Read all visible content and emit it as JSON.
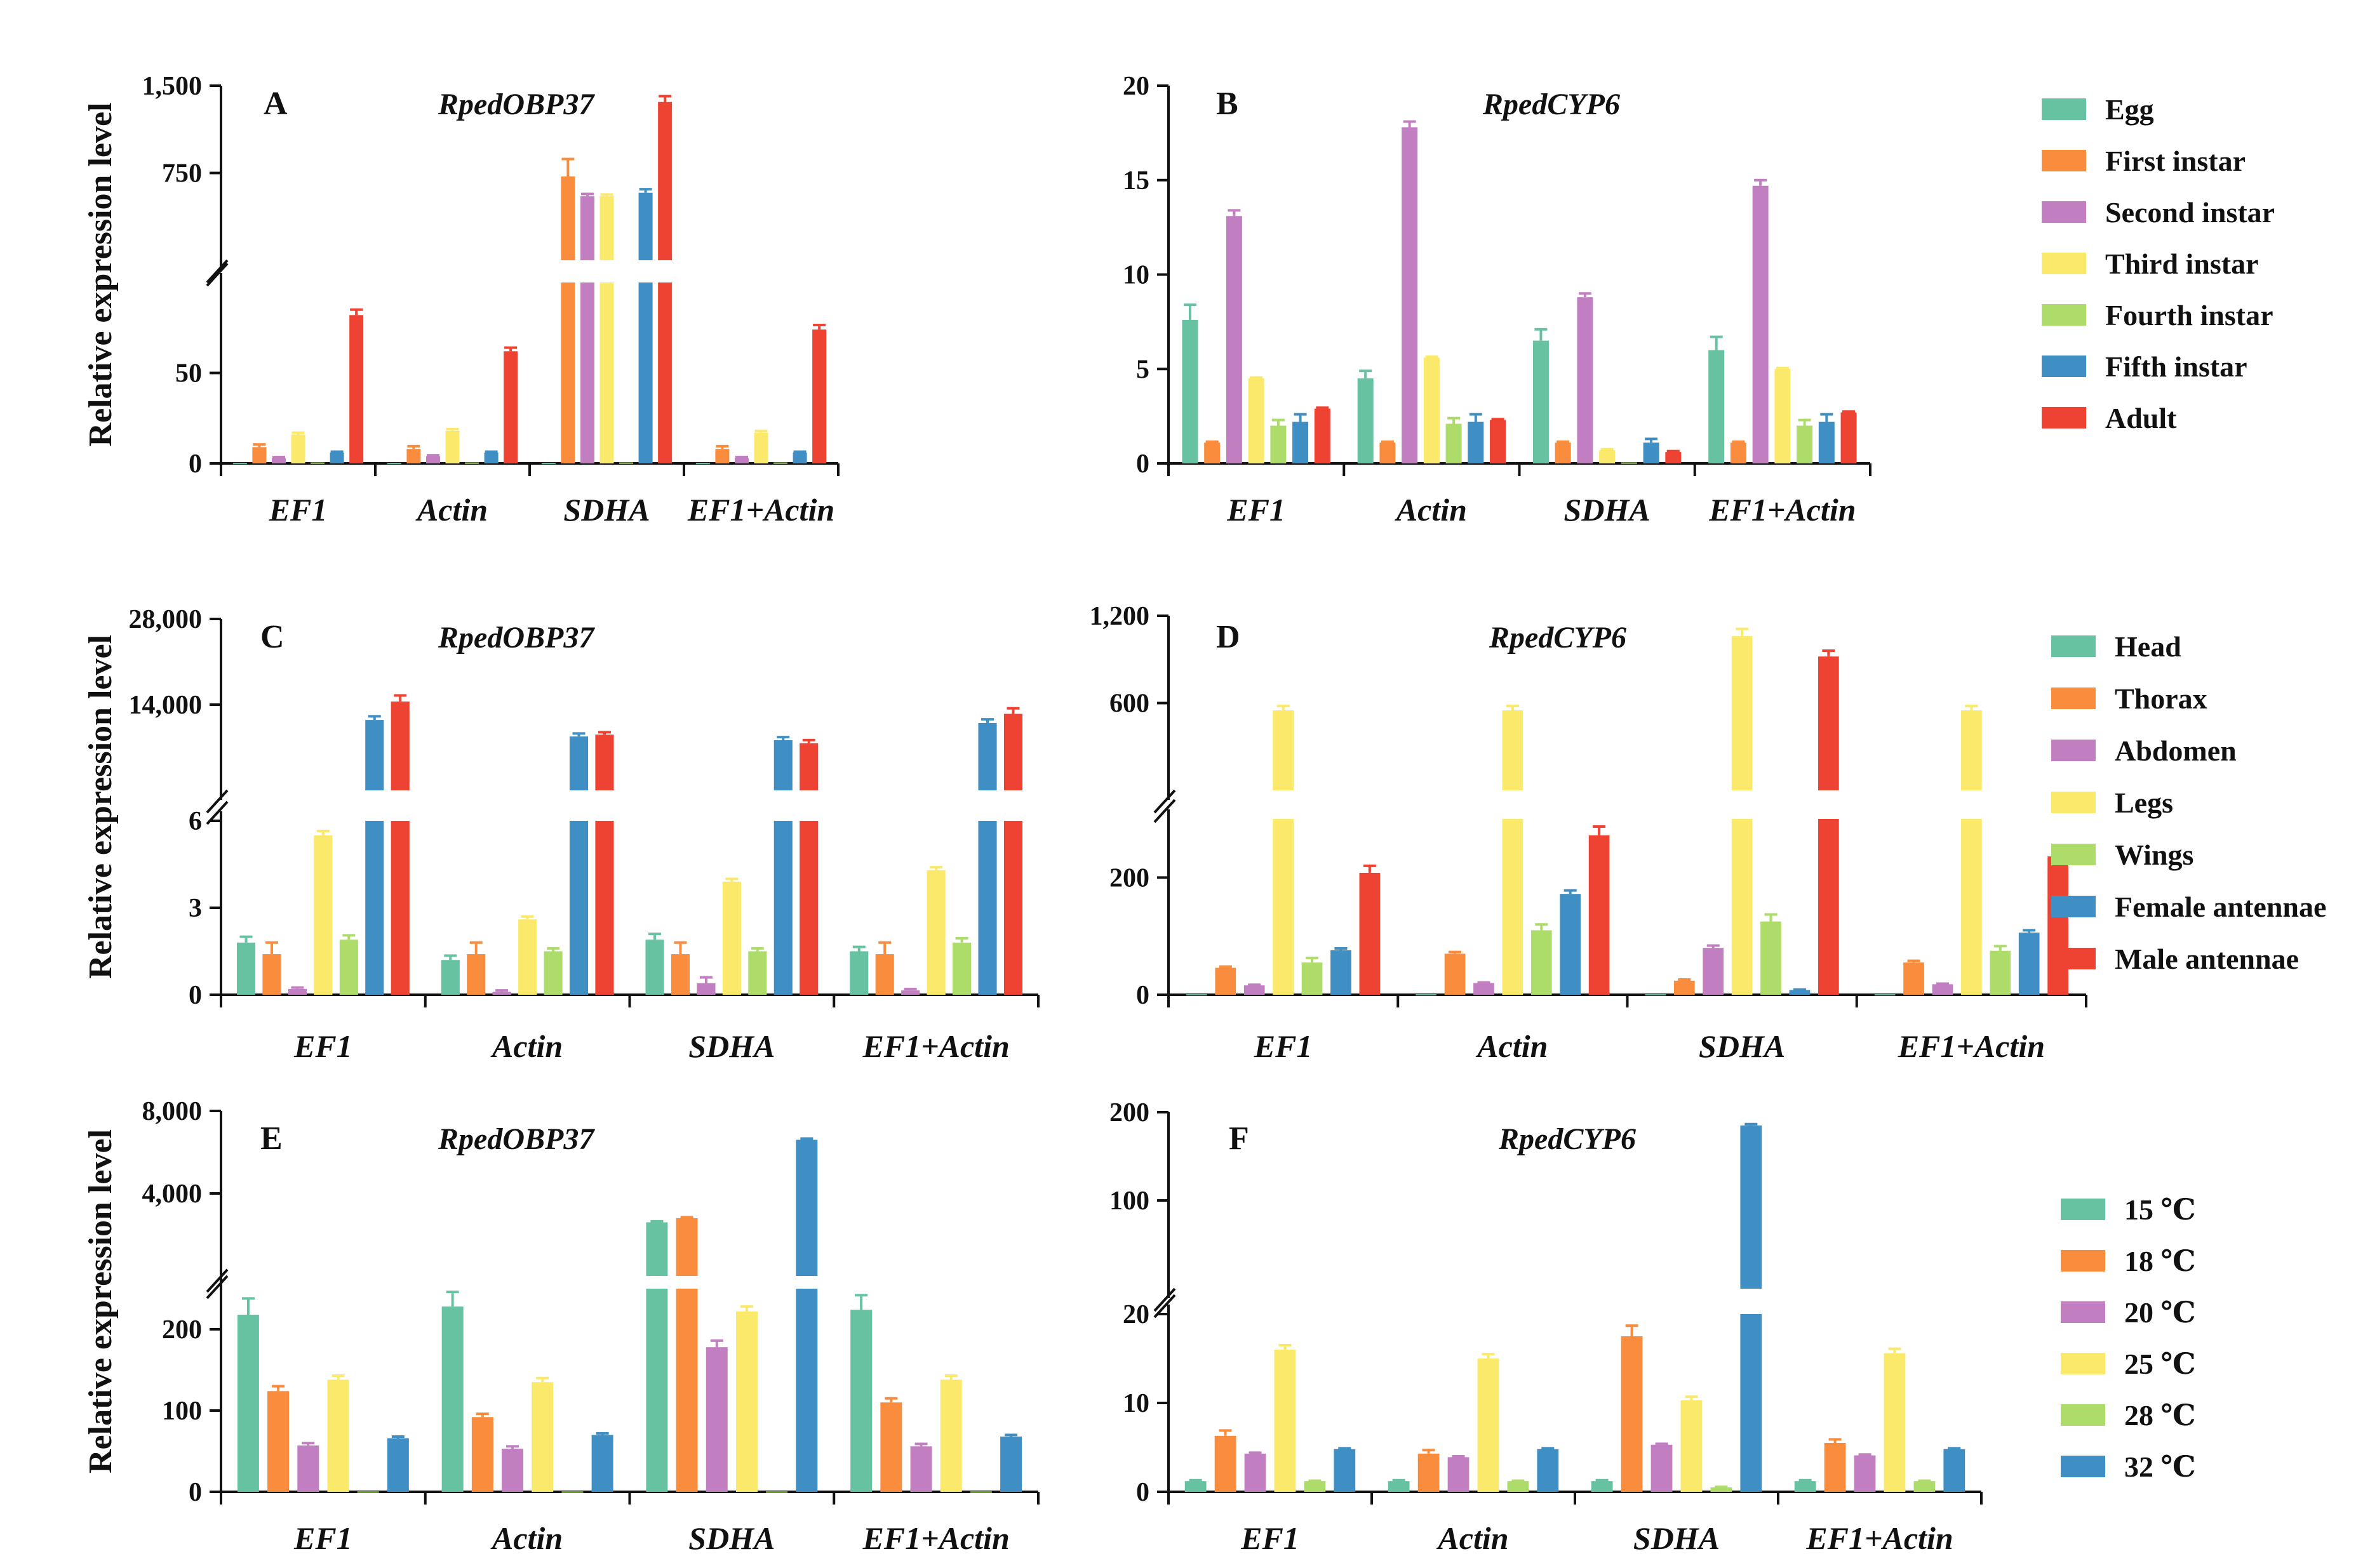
{
  "figure": {
    "ylabel": "Relative expression level"
  },
  "legends": [
    {
      "name": "stages",
      "entries": [
        {
          "label": "Egg",
          "color": "#66c2a0"
        },
        {
          "label": "First instar",
          "color": "#f98c3d"
        },
        {
          "label": "Second instar",
          "color": "#c17fc2"
        },
        {
          "label": "Third instar",
          "color": "#fbe96b"
        },
        {
          "label": "Fourth instar",
          "color": "#aedc6a"
        },
        {
          "label": "Fifth instar",
          "color": "#3f8fc4"
        },
        {
          "label": "Adult",
          "color": "#ee4232"
        }
      ]
    },
    {
      "name": "tissues",
      "entries": [
        {
          "label": "Head",
          "color": "#66c2a0"
        },
        {
          "label": "Thorax",
          "color": "#f98c3d"
        },
        {
          "label": "Abdomen",
          "color": "#c17fc2"
        },
        {
          "label": "Legs",
          "color": "#fbe96b"
        },
        {
          "label": "Wings",
          "color": "#aedc6a"
        },
        {
          "label": "Female antennae",
          "color": "#3f8fc4"
        },
        {
          "label": "Male antennae",
          "color": "#ee4232"
        }
      ]
    },
    {
      "name": "temperatures",
      "entries": [
        {
          "label": "15 ℃",
          "color": "#66c2a0"
        },
        {
          "label": "18 ℃",
          "color": "#f98c3d"
        },
        {
          "label": "20 ℃",
          "color": "#c17fc2"
        },
        {
          "label": "25 ℃",
          "color": "#fbe96b"
        },
        {
          "label": "28 ℃",
          "color": "#aedc6a"
        },
        {
          "label": "32 ℃",
          "color": "#3f8fc4"
        }
      ]
    }
  ],
  "chart_data": [
    {
      "panel": "A",
      "gene": "RpedOBP37",
      "type": "bar",
      "ylabel": "Relative expression level",
      "categories": [
        "EF1",
        "Actin",
        "SDHA",
        "EF1+Actin"
      ],
      "legend_group": 0,
      "y_axis": {
        "broken": true,
        "lower_range": [
          0,
          100
        ],
        "lower_ticks": [
          "0",
          "50"
        ],
        "lower_tick_values": [
          0,
          50
        ],
        "upper_range": [
          0,
          1500
        ],
        "upper_ticks": [
          "750",
          "1,500"
        ],
        "upper_tick_values": [
          750,
          1500
        ]
      },
      "series": [
        {
          "name": "Egg",
          "values": [
            0.3,
            0.3,
            0.3,
            0.3
          ],
          "errors": [
            0,
            0,
            0,
            0
          ]
        },
        {
          "name": "First instar",
          "values": [
            9,
            8,
            720,
            8
          ],
          "errors": [
            1.5,
            1.5,
            150,
            1.5
          ]
        },
        {
          "name": "Second instar",
          "values": [
            3,
            4,
            550,
            3
          ],
          "errors": [
            0.5,
            0.5,
            20,
            0.5
          ]
        },
        {
          "name": "Third instar",
          "values": [
            16,
            18,
            550,
            17
          ],
          "errors": [
            1,
            1,
            15,
            1
          ]
        },
        {
          "name": "Fourth instar",
          "values": [
            0.5,
            0.5,
            0.5,
            0.5
          ],
          "errors": [
            0,
            0,
            0,
            0
          ]
        },
        {
          "name": "Fifth instar",
          "values": [
            6,
            6,
            580,
            6
          ],
          "errors": [
            0.5,
            0.5,
            30,
            0.5
          ]
        },
        {
          "name": "Adult",
          "values": [
            82,
            62,
            1360,
            74
          ],
          "errors": [
            3,
            2,
            50,
            2.5
          ]
        }
      ]
    },
    {
      "panel": "B",
      "gene": "RpedCYP6",
      "type": "bar",
      "ylabel": "",
      "categories": [
        "EF1",
        "Actin",
        "SDHA",
        "EF1+Actin"
      ],
      "legend_group": 0,
      "y_axis": {
        "broken": false,
        "range": [
          0,
          20
        ],
        "ticks": [
          "0",
          "5",
          "10",
          "15",
          "20"
        ],
        "tick_values": [
          0,
          5,
          10,
          15,
          20
        ]
      },
      "series": [
        {
          "name": "Egg",
          "values": [
            7.6,
            4.5,
            6.5,
            6.0
          ],
          "errors": [
            0.8,
            0.4,
            0.6,
            0.7
          ]
        },
        {
          "name": "First instar",
          "values": [
            1.1,
            1.1,
            1.1,
            1.1
          ],
          "errors": [
            0.05,
            0.05,
            0.05,
            0.05
          ]
        },
        {
          "name": "Second instar",
          "values": [
            13.1,
            17.8,
            8.8,
            14.7
          ],
          "errors": [
            0.3,
            0.3,
            0.2,
            0.3
          ]
        },
        {
          "name": "Third instar",
          "values": [
            4.5,
            5.6,
            0.7,
            5.0
          ],
          "errors": [
            0.05,
            0.05,
            0.05,
            0.05
          ]
        },
        {
          "name": "Fourth instar",
          "values": [
            2.0,
            2.1,
            0.05,
            2.0
          ],
          "errors": [
            0.3,
            0.3,
            0,
            0.3
          ]
        },
        {
          "name": "Fifth instar",
          "values": [
            2.2,
            2.2,
            1.1,
            2.2
          ],
          "errors": [
            0.4,
            0.4,
            0.2,
            0.4
          ]
        },
        {
          "name": "Adult",
          "values": [
            2.9,
            2.3,
            0.6,
            2.7
          ],
          "errors": [
            0.05,
            0.05,
            0.05,
            0.05
          ]
        }
      ]
    },
    {
      "panel": "C",
      "gene": "RpedOBP37",
      "type": "bar",
      "ylabel": "Relative expression level",
      "categories": [
        "EF1",
        "Actin",
        "SDHA",
        "EF1+Actin"
      ],
      "legend_group": 1,
      "y_axis": {
        "broken": true,
        "lower_range": [
          0,
          6
        ],
        "lower_ticks": [
          "0",
          "3",
          "6"
        ],
        "lower_tick_values": [
          0,
          3,
          6
        ],
        "upper_range": [
          0,
          28000
        ],
        "upper_ticks": [
          "14,000",
          "28,000"
        ],
        "upper_tick_values": [
          14000,
          28000
        ]
      },
      "series": [
        {
          "name": "Head",
          "values": [
            1.8,
            1.2,
            1.9,
            1.5
          ],
          "errors": [
            0.2,
            0.15,
            0.2,
            0.15
          ]
        },
        {
          "name": "Thorax",
          "values": [
            1.4,
            1.4,
            1.4,
            1.4
          ],
          "errors": [
            0.4,
            0.4,
            0.4,
            0.4
          ]
        },
        {
          "name": "Abdomen",
          "values": [
            0.2,
            0.1,
            0.4,
            0.15
          ],
          "errors": [
            0.05,
            0.05,
            0.2,
            0.05
          ]
        },
        {
          "name": "Legs",
          "values": [
            5.5,
            2.6,
            3.9,
            4.3
          ],
          "errors": [
            0.15,
            0.1,
            0.1,
            0.1
          ]
        },
        {
          "name": "Wings",
          "values": [
            1.9,
            1.5,
            1.5,
            1.8
          ],
          "errors": [
            0.15,
            0.1,
            0.1,
            0.15
          ]
        },
        {
          "name": "Female antennae",
          "values": [
            11500,
            8800,
            8200,
            11000
          ],
          "errors": [
            600,
            500,
            500,
            600
          ]
        },
        {
          "name": "Male antennae",
          "values": [
            14500,
            9100,
            7700,
            12500
          ],
          "errors": [
            1000,
            400,
            500,
            900
          ]
        }
      ]
    },
    {
      "panel": "D",
      "gene": "RpedCYP6",
      "type": "bar",
      "ylabel": "",
      "categories": [
        "EF1",
        "Actin",
        "SDHA",
        "EF1+Actin"
      ],
      "legend_group": 1,
      "y_axis": {
        "broken": true,
        "lower_range": [
          0,
          300
        ],
        "lower_ticks": [
          "0",
          "200"
        ],
        "lower_tick_values": [
          0,
          200
        ],
        "upper_range": [
          0,
          1200
        ],
        "upper_ticks": [
          "600",
          "1,200"
        ],
        "upper_tick_values": [
          600,
          1200
        ]
      },
      "series": [
        {
          "name": "Head",
          "values": [
            1,
            1,
            1,
            1
          ],
          "errors": [
            0,
            0,
            0,
            0
          ]
        },
        {
          "name": "Thorax",
          "values": [
            46,
            70,
            24,
            55
          ],
          "errors": [
            2,
            3,
            2,
            3
          ]
        },
        {
          "name": "Abdomen",
          "values": [
            16,
            20,
            80,
            18
          ],
          "errors": [
            1,
            1,
            4,
            1
          ]
        },
        {
          "name": "Legs",
          "values": [
            550,
            550,
            1060,
            550
          ],
          "errors": [
            30,
            30,
            50,
            30
          ]
        },
        {
          "name": "Wings",
          "values": [
            55,
            110,
            125,
            75
          ],
          "errors": [
            8,
            10,
            12,
            8
          ]
        },
        {
          "name": "Female antennae",
          "values": [
            76,
            172,
            8,
            106
          ],
          "errors": [
            3,
            6,
            1,
            4
          ]
        },
        {
          "name": "Male antennae",
          "values": [
            208,
            272,
            920,
            236
          ],
          "errors": [
            12,
            15,
            40,
            14
          ]
        }
      ]
    },
    {
      "panel": "E",
      "gene": "RpedOBP37",
      "type": "bar",
      "ylabel": "Relative expression level",
      "categories": [
        "EF1",
        "Actin",
        "SDHA",
        "EF1+Actin"
      ],
      "legend_group": 2,
      "y_axis": {
        "broken": true,
        "lower_range": [
          0,
          250
        ],
        "lower_ticks": [
          "0",
          "100",
          "200"
        ],
        "lower_tick_values": [
          0,
          100,
          200
        ],
        "upper_range": [
          0,
          8000
        ],
        "upper_ticks": [
          "4,000",
          "8,000"
        ],
        "upper_tick_values": [
          4000,
          8000
        ]
      },
      "series": [
        {
          "name": "15 ℃",
          "values": [
            218,
            228,
            2600,
            224
          ],
          "errors": [
            20,
            18,
            50,
            18
          ]
        },
        {
          "name": "18 ℃",
          "values": [
            124,
            92,
            2800,
            110
          ],
          "errors": [
            6,
            4,
            50,
            5
          ]
        },
        {
          "name": "20 ℃",
          "values": [
            57,
            53,
            178,
            56
          ],
          "errors": [
            3,
            3,
            8,
            3
          ]
        },
        {
          "name": "25 ℃",
          "values": [
            138,
            135,
            222,
            138
          ],
          "errors": [
            5,
            5,
            6,
            5
          ]
        },
        {
          "name": "28 ℃",
          "values": [
            0.5,
            0.5,
            0.5,
            0.5
          ],
          "errors": [
            0,
            0,
            0,
            0
          ]
        },
        {
          "name": "32 ℃",
          "values": [
            66,
            70,
            6600,
            68
          ],
          "errors": [
            2,
            2,
            60,
            2
          ]
        }
      ]
    },
    {
      "panel": "F",
      "gene": "RpedCYP6",
      "type": "bar",
      "ylabel": "",
      "categories": [
        "EF1",
        "Actin",
        "SDHA",
        "EF1+Actin"
      ],
      "legend_group": 2,
      "y_axis": {
        "broken": true,
        "lower_range": [
          0,
          20
        ],
        "lower_ticks": [
          "0",
          "10",
          "20"
        ],
        "lower_tick_values": [
          0,
          10,
          20
        ],
        "upper_range": [
          0,
          200
        ],
        "upper_ticks": [
          "100",
          "200"
        ],
        "upper_tick_values": [
          100,
          200
        ]
      },
      "series": [
        {
          "name": "15 ℃",
          "values": [
            1.2,
            1.2,
            1.2,
            1.2
          ],
          "errors": [
            0.1,
            0.1,
            0.1,
            0.1
          ]
        },
        {
          "name": "18 ℃",
          "values": [
            6.3,
            4.3,
            17.5,
            5.5
          ],
          "errors": [
            0.6,
            0.4,
            1.2,
            0.4
          ]
        },
        {
          "name": "20 ℃",
          "values": [
            4.3,
            3.9,
            5.3,
            4.1
          ],
          "errors": [
            0.1,
            0.1,
            0.1,
            0.1
          ]
        },
        {
          "name": "25 ℃",
          "values": [
            16.0,
            15.0,
            10.3,
            15.6
          ],
          "errors": [
            0.5,
            0.5,
            0.4,
            0.5
          ]
        },
        {
          "name": "28 ℃",
          "values": [
            1.2,
            1.2,
            0.5,
            1.2
          ],
          "errors": [
            0.05,
            0.05,
            0.05,
            0.05
          ]
        },
        {
          "name": "32 ℃",
          "values": [
            4.8,
            4.8,
            185,
            4.8
          ],
          "errors": [
            0.1,
            0.1,
            1.5,
            0.1
          ]
        }
      ]
    }
  ]
}
